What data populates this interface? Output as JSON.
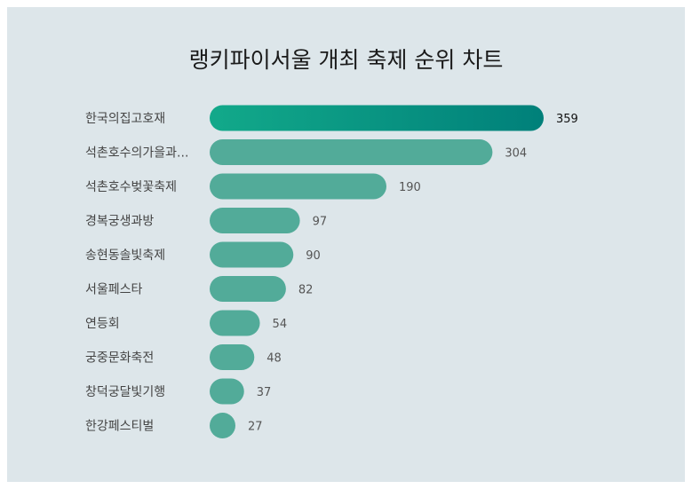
{
  "chart_data": {
    "type": "bar",
    "orientation": "horizontal",
    "title": "랭키파이서울 개최 축제 순위 차트",
    "categories": [
      "한국의집고호재",
      "석촌호수의가을과...",
      "석촌호수벚꽃축제",
      "경복궁생과방",
      "송현동솔빛축제",
      "서울페스타",
      "연등회",
      "궁중문화축전",
      "창덕궁달빛기행",
      "한강페스티벌"
    ],
    "values": [
      359,
      304,
      190,
      97,
      90,
      82,
      54,
      48,
      37,
      27
    ],
    "xlim": [
      0,
      359
    ],
    "grid": false,
    "legend": "none",
    "colors": {
      "highlight_start": "#12a98a",
      "highlight_end": "#00807a",
      "bar": "#52ab99",
      "panel_background": "#dde6ea",
      "highlight_label": "#111111",
      "label": "#555555",
      "category_label": "#444444"
    }
  }
}
